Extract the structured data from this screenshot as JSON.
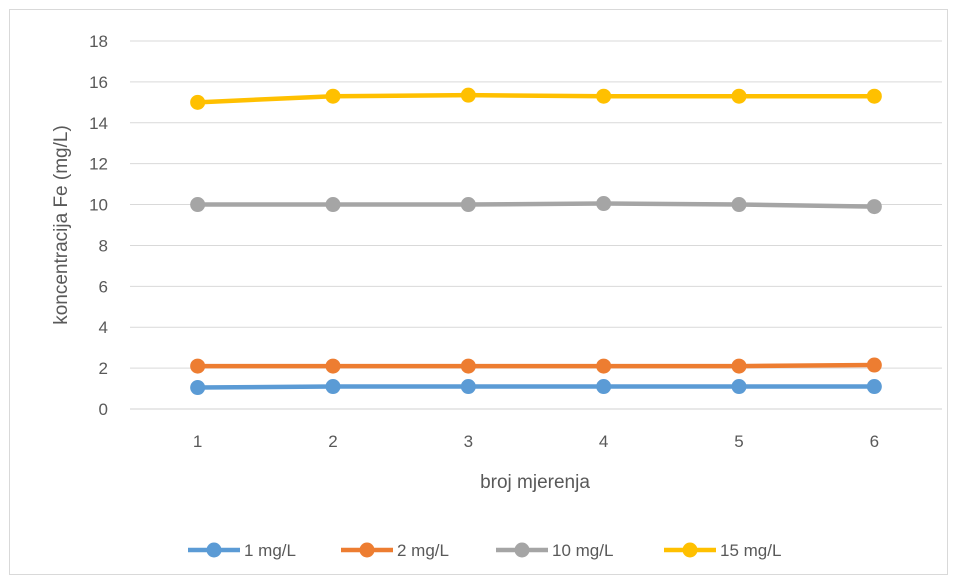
{
  "chart_data": {
    "type": "line",
    "title": "",
    "xlabel": "broj mjerenja",
    "ylabel": "koncentracija Fe (mg/L)",
    "categories": [
      "1",
      "2",
      "3",
      "4",
      "5",
      "6"
    ],
    "ylim": [
      0,
      18
    ],
    "yticks": [
      0,
      2,
      4,
      6,
      8,
      10,
      12,
      14,
      16,
      18
    ],
    "grid": true,
    "legend_position": "bottom",
    "series": [
      {
        "name": "1 mg/L",
        "color": "#5b9bd5",
        "values": [
          1.05,
          1.1,
          1.1,
          1.1,
          1.1,
          1.1
        ]
      },
      {
        "name": "2 mg/L",
        "color": "#ed7d31",
        "values": [
          2.1,
          2.1,
          2.1,
          2.1,
          2.1,
          2.15
        ]
      },
      {
        "name": "10 mg/L",
        "color": "#a5a5a5",
        "values": [
          10.0,
          10.0,
          10.0,
          10.05,
          10.0,
          9.9
        ]
      },
      {
        "name": "15 mg/L",
        "color": "#ffc000",
        "values": [
          15.0,
          15.3,
          15.35,
          15.3,
          15.3,
          15.3
        ]
      }
    ]
  }
}
